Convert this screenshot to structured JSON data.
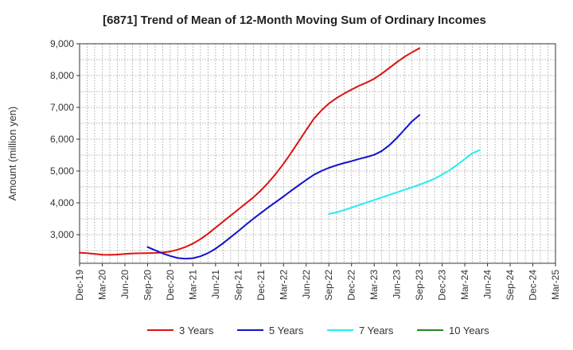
{
  "chart_data": {
    "type": "line",
    "title": "[6871]  Trend of Mean of 12-Month Moving Sum of Ordinary Incomes",
    "ylabel": "Amount (million yen)",
    "xlabel": "",
    "ylim": [
      2100,
      9000
    ],
    "y_ticks": [
      3000,
      4000,
      5000,
      6000,
      7000,
      8000,
      9000
    ],
    "y_tick_labels": [
      "3,000",
      "4,000",
      "5,000",
      "6,000",
      "7,000",
      "8,000",
      "9,000"
    ],
    "x_tick_labels": [
      "Dec-19",
      "Mar-20",
      "Jun-20",
      "Sep-20",
      "Dec-20",
      "Mar-21",
      "Jun-21",
      "Sep-21",
      "Dec-21",
      "Mar-22",
      "Jun-22",
      "Sep-22",
      "Dec-22",
      "Mar-23",
      "Jun-23",
      "Sep-23",
      "Dec-23",
      "Mar-24",
      "Jun-24",
      "Sep-24",
      "Dec-24",
      "Mar-25"
    ],
    "grid": true,
    "legend_position": "bottom",
    "series": [
      {
        "name": "3 Years",
        "color": "#dd1111",
        "start_index": 0,
        "values": [
          2430,
          2420,
          2395,
          2370,
          2365,
          2375,
          2395,
          2410,
          2415,
          2420,
          2425,
          2440,
          2470,
          2530,
          2610,
          2720,
          2860,
          3030,
          3220,
          3410,
          3600,
          3790,
          3980,
          4170,
          4390,
          4640,
          4920,
          5230,
          5570,
          5930,
          6290,
          6640,
          6900,
          7120,
          7290,
          7430,
          7560,
          7680,
          7780,
          7900,
          8060,
          8240,
          8420,
          8590,
          8730,
          8860
        ]
      },
      {
        "name": "5 Years",
        "color": "#1111cc",
        "start_index": 9,
        "values": [
          2610,
          2510,
          2410,
          2330,
          2265,
          2245,
          2260,
          2320,
          2420,
          2560,
          2730,
          2920,
          3110,
          3310,
          3500,
          3680,
          3860,
          4030,
          4200,
          4380,
          4550,
          4720,
          4880,
          5000,
          5100,
          5180,
          5250,
          5310,
          5380,
          5440,
          5510,
          5630,
          5810,
          6040,
          6300,
          6560,
          6760
        ]
      },
      {
        "name": "7 Years",
        "color": "#22eeee",
        "start_index": 33,
        "values": [
          3650,
          3700,
          3770,
          3850,
          3930,
          4010,
          4090,
          4170,
          4250,
          4330,
          4410,
          4490,
          4570,
          4660,
          4760,
          4890,
          5030,
          5200,
          5380,
          5560,
          5660
        ]
      },
      {
        "name": "10 Years",
        "color": "#228822",
        "start_index": 0,
        "values": []
      }
    ]
  }
}
